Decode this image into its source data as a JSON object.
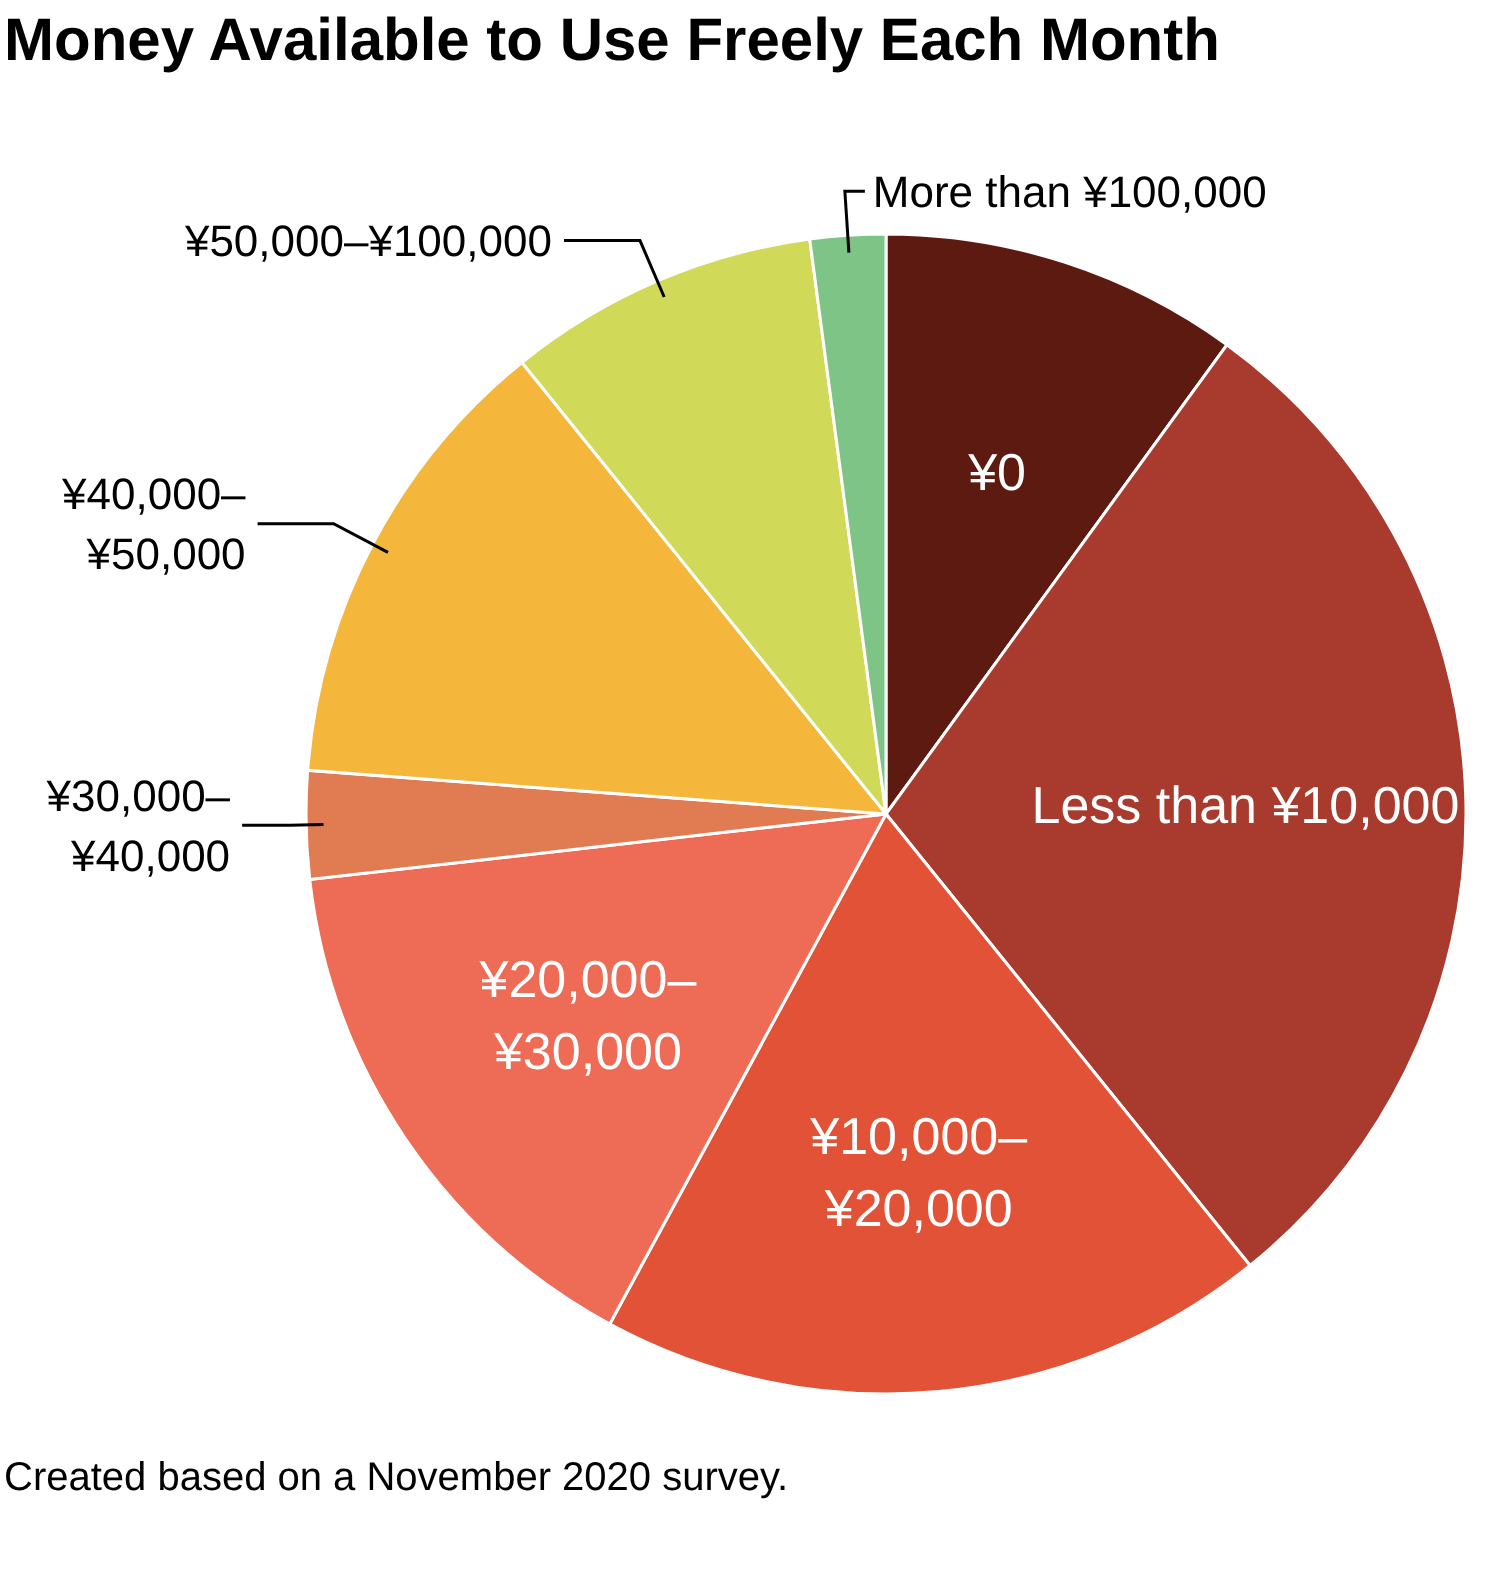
{
  "chart_data": {
    "type": "pie",
    "title": "Money Available to Use Freely Each Month",
    "categories": [
      "¥0",
      "Less than ¥10,000",
      "¥10,000–¥20,000",
      "¥20,000–¥30,000",
      "¥30,000–¥40,000",
      "¥40,000–¥50,000",
      "¥50,000–¥100,000",
      "More than ¥100,000"
    ],
    "values": [
      10,
      29.2,
      18.7,
      15.3,
      3,
      13,
      8.7,
      2.1
    ],
    "colors": [
      "#5c1a10",
      "#a83b2e",
      "#e25237",
      "#ee6b56",
      "#e17b52",
      "#f4b73c",
      "#d0da58",
      "#7ec486"
    ],
    "annotations": [
      "Created based on a November 2020 survey."
    ]
  }
}
